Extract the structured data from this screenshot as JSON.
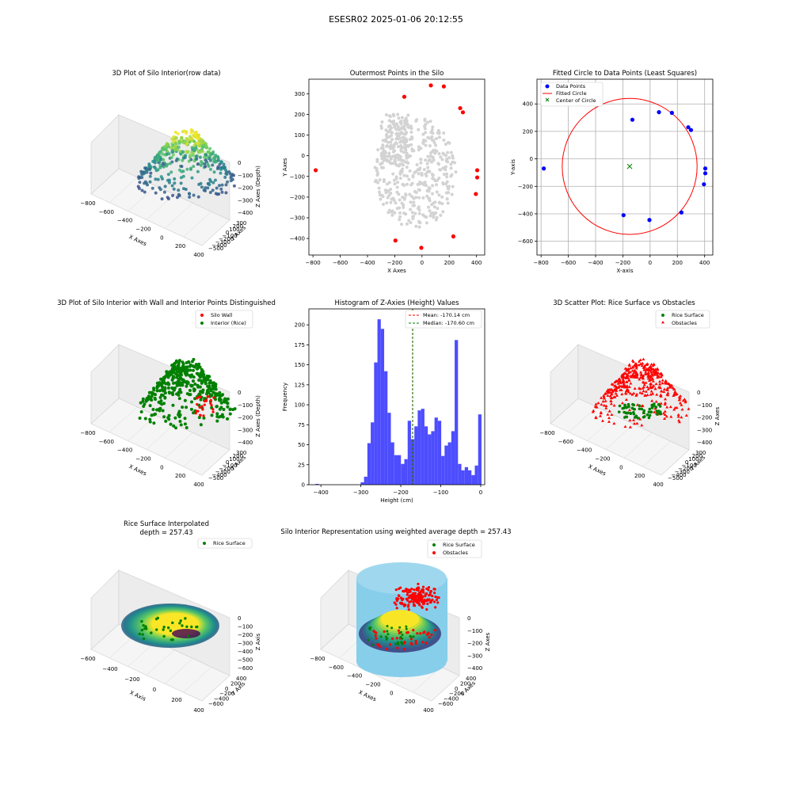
{
  "suptitle": "ESESR02 2025-01-06 20:12:55",
  "chart_data": [
    {
      "type": "scatter3d",
      "title": "3D Plot of Silo Interior(row data)",
      "xlabel": "X Axes",
      "ylabel": "Y Axes",
      "zlabel": "Z Axes (Depth)",
      "xticks": [
        "−800",
        "−600",
        "−400",
        "−200",
        "0",
        "200",
        "400"
      ],
      "yticks": [
        "300",
        "200",
        "100",
        "0",
        "−100",
        "−200",
        "−300",
        "−400",
        "−500"
      ],
      "zticks": [
        "0",
        "−100",
        "−200",
        "−300",
        "−400"
      ],
      "xlim": [
        -800,
        420
      ],
      "ylim": [
        -500,
        340
      ],
      "zlim": [
        -450,
        0
      ],
      "colormap": "viridis"
    },
    {
      "type": "scatter",
      "title": "Outermost Points in the Silo",
      "xlabel": "X Axes",
      "ylabel": "Y Axes",
      "xlim": [
        -830,
        460
      ],
      "ylim": [
        -480,
        370
      ],
      "xticks": [
        "−800",
        "−600",
        "−400",
        "−200",
        "0",
        "200",
        "400"
      ],
      "yticks": [
        "300",
        "200",
        "100",
        "0",
        "−100",
        "−200",
        "−300",
        "−400"
      ],
      "series": [
        {
          "color": "#d3d3d3"
        },
        {
          "color": "#ff0000",
          "points": [
            [
              -780,
              -70
            ],
            [
              -195,
              -410
            ],
            [
              -130,
              285
            ],
            [
              -5,
              -445
            ],
            [
              65,
              340
            ],
            [
              160,
              335
            ],
            [
              230,
              -390
            ],
            [
              280,
              230
            ],
            [
              300,
              210
            ],
            [
              395,
              -185
            ],
            [
              405,
              -70
            ],
            [
              405,
              -105
            ]
          ]
        }
      ]
    },
    {
      "type": "scatter+circle",
      "title": "Fitted Circle to Data Points (Least Squares)",
      "xlabel": "X-axis",
      "ylabel": "Y-axis",
      "xlim": [
        -830,
        460
      ],
      "ylim": [
        -700,
        580
      ],
      "grid": true,
      "xticks": [
        "−800",
        "−600",
        "−400",
        "−200",
        "0",
        "200",
        "400"
      ],
      "yticks": [
        "400",
        "200",
        "0",
        "−200",
        "−400",
        "−600"
      ],
      "legend": [
        "Data Points",
        "Fitted Circle",
        "Center of Circle"
      ],
      "legend_position": "upper-left",
      "points": [
        [
          -780,
          -70
        ],
        [
          -195,
          -410
        ],
        [
          -130,
          285
        ],
        [
          -5,
          -445
        ],
        [
          65,
          340
        ],
        [
          160,
          335
        ],
        [
          230,
          -390
        ],
        [
          280,
          230
        ],
        [
          300,
          210
        ],
        [
          395,
          -185
        ],
        [
          405,
          -70
        ],
        [
          405,
          -105
        ]
      ],
      "circle": {
        "cx": -150,
        "cy": -55,
        "r": 495
      },
      "colors": {
        "points": "#0000ff",
        "circle": "#ff0000",
        "center": "#008000"
      }
    },
    {
      "type": "scatter3d",
      "title": "3D Plot of Silo Interior with Wall and Interior Points Distinguished",
      "xlabel": "X Axes",
      "ylabel": "Y Axes",
      "zlabel": "Z Axes (Depth)",
      "xticks": [
        "−800",
        "−600",
        "−400",
        "−200",
        "0",
        "200",
        "400"
      ],
      "yticks": [
        "300",
        "200",
        "100",
        "0",
        "−100",
        "−200",
        "−300",
        "−400",
        "−500"
      ],
      "zticks": [
        "0",
        "−100",
        "−200",
        "−300",
        "−400"
      ],
      "legend": [
        "Silo Wall",
        "Interior (Rice)"
      ],
      "legend_position": "upper-right",
      "colors": {
        "wall": "#ff0000",
        "interior": "#008000"
      }
    },
    {
      "type": "histogram",
      "title": "Histogram of Z-Axies (Height) Values",
      "xlabel": "Height (cm)",
      "ylabel": "Frequency",
      "xlim": [
        -430,
        10
      ],
      "ylim": [
        0,
        220
      ],
      "xticks": [
        "−400",
        "−300",
        "−200",
        "−100",
        "0"
      ],
      "yticks": [
        "0",
        "25",
        "50",
        "75",
        "100",
        "125",
        "150",
        "175",
        "200"
      ],
      "bin_width": 8.4,
      "bins": [
        [
          -413.6,
          1
        ],
        [
          -300.4,
          3
        ],
        [
          -292.0,
          10
        ],
        [
          -283.6,
          52
        ],
        [
          -275.2,
          78
        ],
        [
          -266.8,
          153
        ],
        [
          -258.4,
          207
        ],
        [
          -250.0,
          195
        ],
        [
          -241.6,
          142
        ],
        [
          -233.2,
          90
        ],
        [
          -224.8,
          53
        ],
        [
          -216.4,
          37
        ],
        [
          -208.0,
          37
        ],
        [
          -199.6,
          26
        ],
        [
          -191.2,
          32
        ],
        [
          -182.8,
          80
        ],
        [
          -174.4,
          57
        ],
        [
          -166.0,
          73
        ],
        [
          -157.6,
          93
        ],
        [
          -149.2,
          95
        ],
        [
          -140.8,
          73
        ],
        [
          -132.4,
          63
        ],
        [
          -124.0,
          67
        ],
        [
          -115.6,
          84
        ],
        [
          -107.2,
          80
        ],
        [
          -98.8,
          36
        ],
        [
          -90.4,
          49
        ],
        [
          -82.0,
          53
        ],
        [
          -73.6,
          67
        ],
        [
          -65.2,
          181
        ],
        [
          -56.8,
          26
        ],
        [
          -48.4,
          18
        ],
        [
          -40.0,
          22
        ],
        [
          -31.6,
          18
        ],
        [
          -23.2,
          12
        ],
        [
          -14.8,
          24
        ],
        [
          -6.4,
          88
        ]
      ],
      "mean": -170.14,
      "median": -170.6,
      "legend": [
        "Mean: -170.14 cm",
        "Median: -170.60 cm"
      ],
      "legend_position": "upper-right",
      "colors": {
        "bars": "#4d4dff",
        "mean": "#ff0000",
        "median": "#008000"
      }
    },
    {
      "type": "scatter3d",
      "title": "3D Scatter Plot: Rice Surface vs Obstacles",
      "xlabel": "X Axes",
      "ylabel": "Y Axes",
      "zlabel": "Z Axes",
      "xticks": [
        "−800",
        "−600",
        "−400",
        "−200",
        "0",
        "200",
        "400"
      ],
      "yticks": [
        "300",
        "200",
        "100",
        "0",
        "−100",
        "−200",
        "−300",
        "−400",
        "−500"
      ],
      "zticks": [
        "0",
        "−100",
        "−200",
        "−300",
        "−400"
      ],
      "legend": [
        "Rice Surface",
        "Obstacles"
      ],
      "legend_position": "upper-right",
      "colors": {
        "surface": "#008000",
        "obstacles": "#ff0000"
      }
    },
    {
      "type": "surface3d",
      "title": "Rice Surface Interpolated",
      "subtitle": "depth = 257.43",
      "xlabel": "X Axis",
      "ylabel": "Y Axis",
      "zlabel": "Z Axis",
      "xticks": [
        "−600",
        "−400",
        "−200",
        "0",
        "200",
        "400"
      ],
      "yticks": [
        "400",
        "200",
        "0",
        "−200",
        "−400",
        "−600"
      ],
      "zticks": [
        "0",
        "−100",
        "−200",
        "−300",
        "−400",
        "−500",
        "−600"
      ],
      "legend": [
        "Rice Surface"
      ],
      "legend_position": "upper-right",
      "colormap": "viridis"
    },
    {
      "type": "surface3d",
      "title": "Silo Interior Representation using weighted average depth = 257.43",
      "xlabel": "X Axes",
      "ylabel": "Y Axes",
      "zlabel": "Z Axes",
      "xticks": [
        "−800",
        "−600",
        "−400",
        "−200",
        "0",
        "200",
        "400"
      ],
      "yticks": [
        "400",
        "200",
        "0",
        "−200",
        "−400",
        "−600"
      ],
      "zticks": [
        "0",
        "−100",
        "−200",
        "−300",
        "−400"
      ],
      "legend": [
        "Rice Surface",
        "Obstacles"
      ],
      "legend_position": "upper-center",
      "colors": {
        "surface": "#008000",
        "obstacles": "#ff0000",
        "cylinder": "#87ceeb"
      }
    }
  ]
}
